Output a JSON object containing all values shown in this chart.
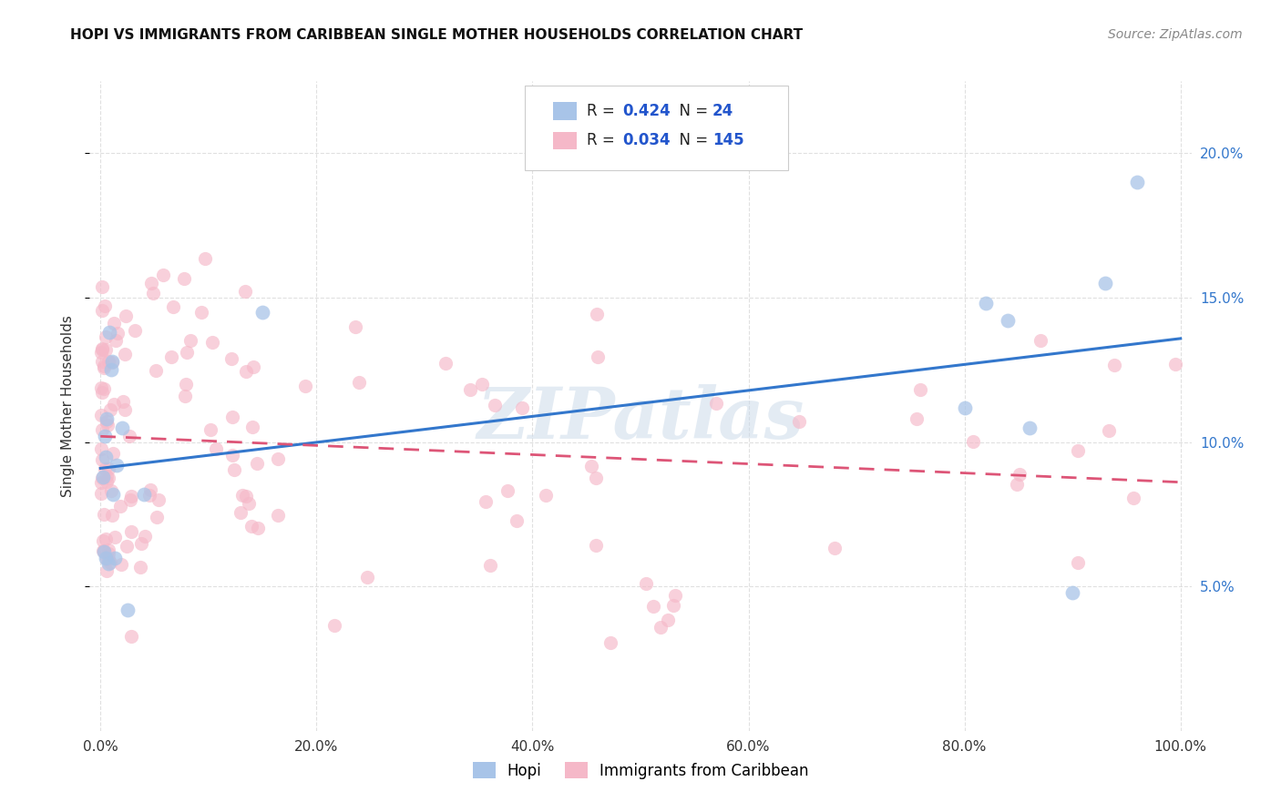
{
  "title": "HOPI VS IMMIGRANTS FROM CARIBBEAN SINGLE MOTHER HOUSEHOLDS CORRELATION CHART",
  "source": "Source: ZipAtlas.com",
  "ylabel": "Single Mother Households",
  "hopi_R": 0.424,
  "hopi_N": 24,
  "caribbean_R": 0.034,
  "caribbean_N": 145,
  "hopi_color": "#a8c4e8",
  "caribbean_color": "#f5b8c8",
  "hopi_line_color": "#3377cc",
  "caribbean_line_color": "#dd5577",
  "watermark": "ZIPatlas",
  "background_color": "#ffffff",
  "grid_color": "#dddddd",
  "ylim": [
    0.0,
    0.225
  ],
  "xlim": [
    -0.01,
    1.01
  ],
  "y_ticks": [
    0.05,
    0.1,
    0.15,
    0.2
  ],
  "x_ticks": [
    0.0,
    0.2,
    0.4,
    0.6,
    0.8,
    1.0
  ],
  "right_tick_color": "#3377cc",
  "title_fontsize": 11,
  "source_fontsize": 10
}
